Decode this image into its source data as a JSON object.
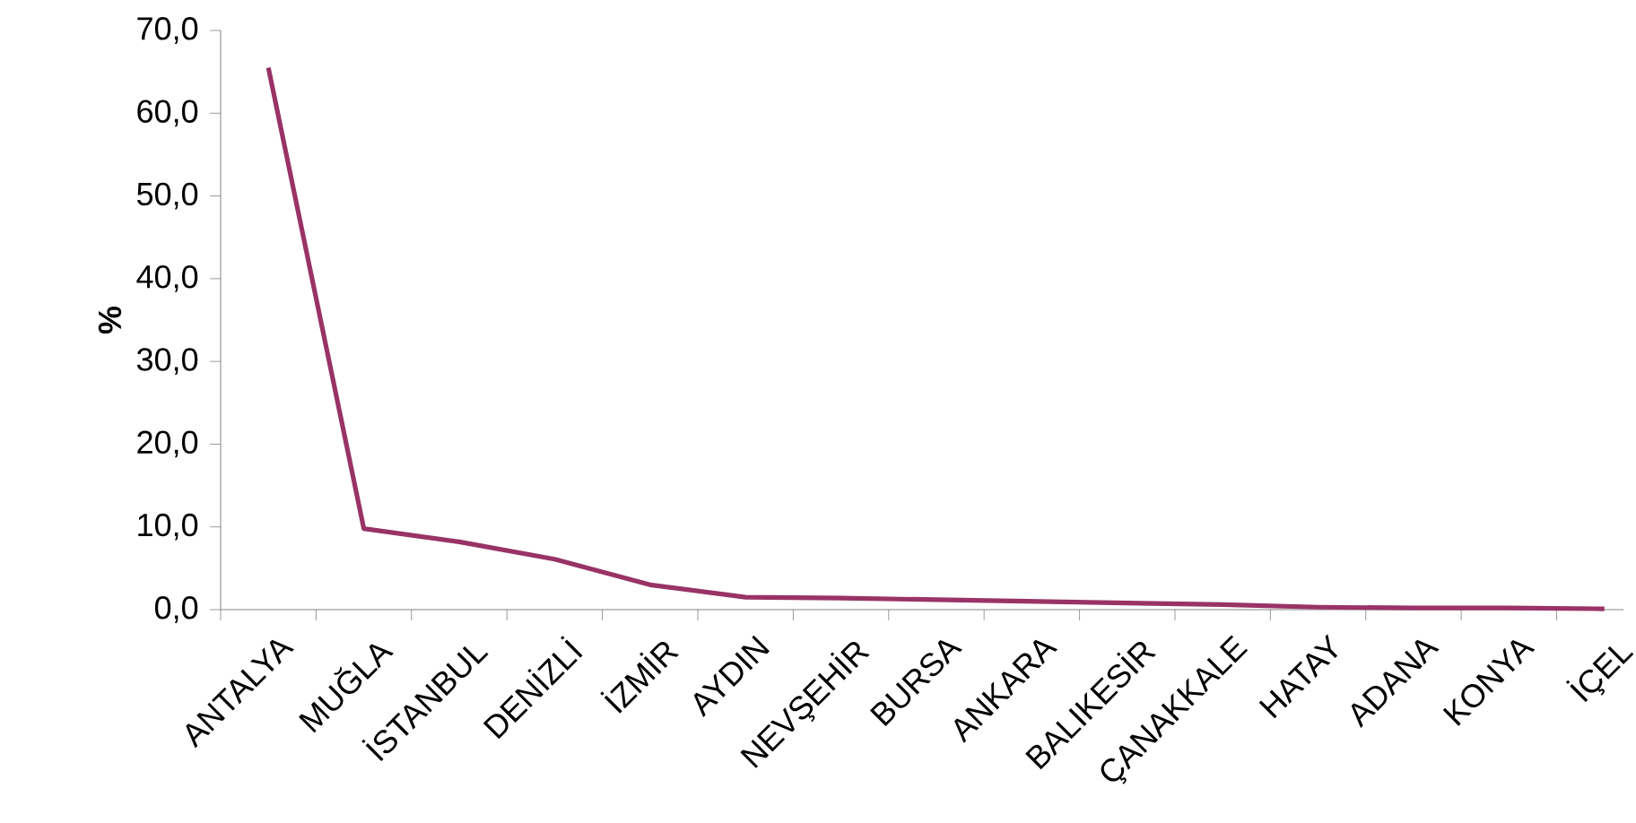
{
  "chart_data": {
    "type": "line",
    "ylabel": "%",
    "categories": [
      "ANTALYA",
      "MUĞLA",
      "İSTANBUL",
      "DENİZLİ",
      "İZMİR",
      "AYDIN",
      "NEVŞEHİR",
      "BURSA",
      "ANKARA",
      "BALIKESİR",
      "ÇANAKKALE",
      "HATAY",
      "ADANA",
      "KONYA",
      "İÇEL"
    ],
    "series": [
      {
        "color": "#993366",
        "values": [
          65.5,
          9.8,
          8.2,
          6.1,
          3.0,
          1.5,
          1.4,
          1.2,
          1.0,
          0.8,
          0.6,
          0.3,
          0.2,
          0.2,
          0.1
        ]
      }
    ],
    "ylim": [
      0,
      70
    ],
    "yticks": [
      {
        "value": 0,
        "label": "0,0"
      },
      {
        "value": 10,
        "label": "10,0"
      },
      {
        "value": 20,
        "label": "20,0"
      },
      {
        "value": 30,
        "label": "30,0"
      },
      {
        "value": 40,
        "label": "40,0"
      },
      {
        "value": 50,
        "label": "50,0"
      },
      {
        "value": 60,
        "label": "60,0"
      },
      {
        "value": 70,
        "label": "70,0"
      }
    ],
    "marker": "none",
    "line_style": "solid"
  }
}
